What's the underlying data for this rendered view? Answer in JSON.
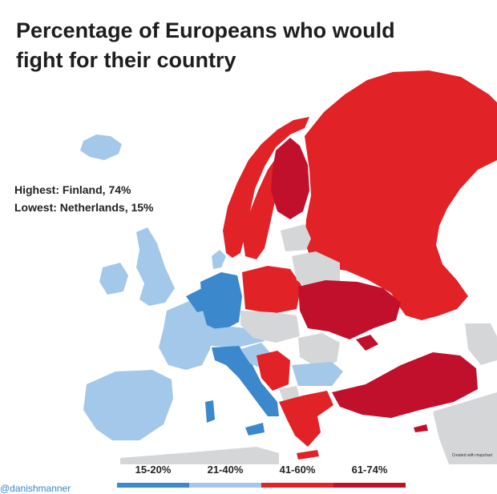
{
  "title": {
    "line1": "Percentage of Europeans who would",
    "line2": "fight for their country"
  },
  "facts": {
    "highest": "Highest: Finland, 74%",
    "lowest": "Lowest: Netherlands, 15%"
  },
  "credit": "Created with mapchart",
  "handle": "@danishmanner",
  "legend": [
    {
      "label": "15-20%",
      "color": "#3b88cc"
    },
    {
      "label": "21-40%",
      "color": "#a3c8e9"
    },
    {
      "label": "41-60%",
      "color": "#e12226"
    },
    {
      "label": "61-74%",
      "color": "#c1102c"
    }
  ],
  "colors": {
    "no_data": "#d4d6d8",
    "sea": "#ffffff"
  }
}
